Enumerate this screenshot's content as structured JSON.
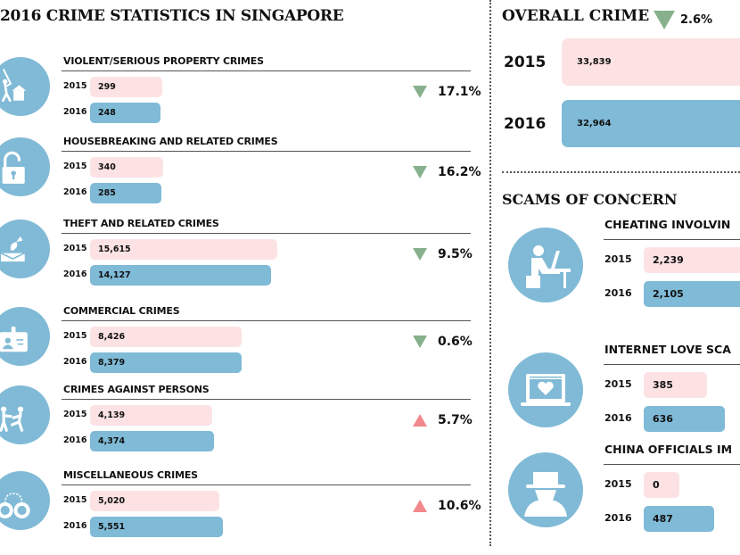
{
  "title": "2016 CRIME STATISTICS IN SINGAPORE",
  "colors": {
    "bar_2015": "#fde2e4",
    "bar_2016": "#7fbad7",
    "icon_circle": "#80bad6",
    "decrease": "#87b08c",
    "increase": "#f2888b"
  },
  "overall": {
    "title": "OVERALL CRIME",
    "direction": "down",
    "change": "2.6%",
    "rows": [
      {
        "year": "2015",
        "label": "33,839",
        "value": 33839
      },
      {
        "year": "2016",
        "label": "32,964",
        "value": 32964
      }
    ]
  },
  "scams": {
    "title": "SCAMS OF CONCERN",
    "items": [
      {
        "name": "CHEATING INVOLVIN",
        "icon": "laptop-user-icon",
        "rows": [
          {
            "year": "2015",
            "label": "2,239",
            "value": 2239
          },
          {
            "year": "2016",
            "label": "2,105",
            "value": 2105
          }
        ]
      },
      {
        "name": "INTERNET LOVE SCA",
        "icon": "laptop-heart-icon",
        "rows": [
          {
            "year": "2015",
            "label": "385",
            "value": 385
          },
          {
            "year": "2016",
            "label": "636",
            "value": 636
          }
        ]
      },
      {
        "name": "CHINA OFFICIALS IM",
        "icon": "spy-icon",
        "rows": [
          {
            "year": "2015",
            "label": "0",
            "value": 0
          },
          {
            "year": "2016",
            "label": "487",
            "value": 487
          }
        ]
      }
    ]
  },
  "chart_data": {
    "type": "bar",
    "title": "2016 CRIME STATISTICS IN SINGAPORE",
    "categories": [
      "VIOLENT/SERIOUS PROPERTY CRIMES",
      "HOUSEBREAKING AND RELATED CRIMES",
      "THEFT AND RELATED CRIMES",
      "COMMERCIAL CRIMES",
      "CRIMES AGAINST PERSONS",
      "MISCELLANEOUS CRIMES"
    ],
    "icons": [
      "burglar-house-icon",
      "padlock-icon",
      "purse-theft-icon",
      "id-card-icon",
      "fighting-icon",
      "handcuffs-icon"
    ],
    "series": [
      {
        "name": "2015",
        "values": [
          299,
          340,
          15615,
          8426,
          4139,
          5020
        ],
        "labels": [
          "299",
          "340",
          "15,615",
          "8,426",
          "4,139",
          "5,020"
        ]
      },
      {
        "name": "2016",
        "values": [
          248,
          285,
          14127,
          8379,
          4374,
          5551
        ],
        "labels": [
          "248",
          "285",
          "14,127",
          "8,379",
          "4,374",
          "5,551"
        ]
      }
    ],
    "changes": [
      {
        "direction": "down",
        "value": "17.1%"
      },
      {
        "direction": "down",
        "value": "16.2%"
      },
      {
        "direction": "down",
        "value": "9.5%"
      },
      {
        "direction": "down",
        "value": "0.6%"
      },
      {
        "direction": "up",
        "value": "5.7%"
      },
      {
        "direction": "up",
        "value": "10.6%"
      }
    ],
    "xlabel": "",
    "ylabel": ""
  }
}
